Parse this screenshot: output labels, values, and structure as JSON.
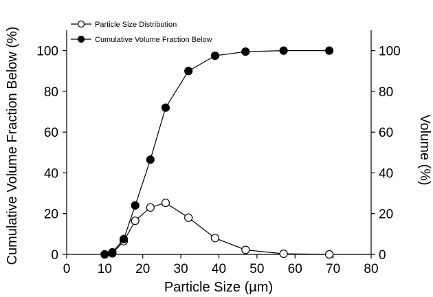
{
  "chart_data": {
    "type": "line",
    "xlabel": "Particle Size (µm)",
    "ylabel": "Cumulative Volume Fraction Below (%)",
    "y2label": "Volume (%)",
    "xlim": [
      0,
      80
    ],
    "ylim": [
      0,
      110
    ],
    "xticks": [
      0,
      10,
      20,
      30,
      40,
      50,
      60,
      70,
      80
    ],
    "yticks": [
      0,
      20,
      40,
      60,
      80,
      100
    ],
    "y2ticks": [
      0,
      20,
      40,
      60,
      80,
      100
    ],
    "grid": false,
    "legend_position": "top-left",
    "series": [
      {
        "name": "Particle Size Distribution",
        "marker": "open-circle",
        "axis": "right",
        "x": [
          10,
          12,
          15,
          18,
          22,
          26,
          32,
          39,
          47,
          57,
          69
        ],
        "y": [
          0,
          0.5,
          6.5,
          16.5,
          23,
          25.3,
          18,
          8,
          2.2,
          0.3,
          0
        ]
      },
      {
        "name": "Cumulative Volume Fraction Below",
        "marker": "filled-circle",
        "axis": "left",
        "x": [
          10,
          12,
          15,
          18,
          22,
          26,
          32,
          39,
          47,
          57,
          69
        ],
        "y": [
          0,
          1,
          7.5,
          24,
          46.5,
          72,
          90,
          97.5,
          99.5,
          100,
          100
        ]
      }
    ]
  }
}
